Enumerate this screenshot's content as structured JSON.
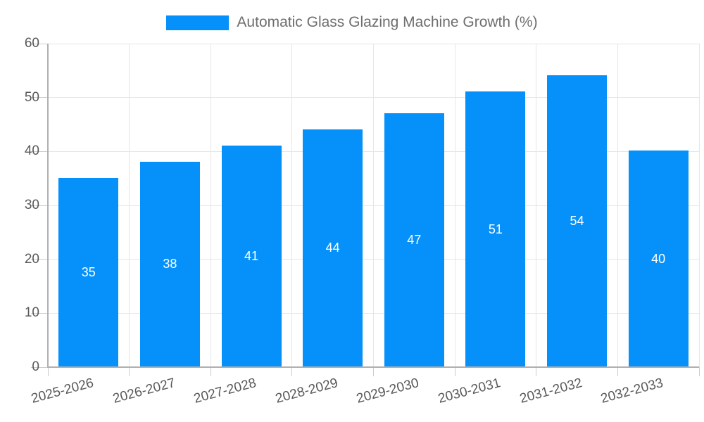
{
  "legend": {
    "label": "Automatic Glass Glazing Machine Growth (%)"
  },
  "chart_data": {
    "type": "bar",
    "title": "Automatic Glass Glazing Machine Growth (%)",
    "categories": [
      "2025-2026",
      "2026-2027",
      "2027-2028",
      "2028-2029",
      "2029-2030",
      "2030-2031",
      "2031-2032",
      "2032-2033"
    ],
    "values": [
      35,
      38,
      41,
      44,
      47,
      51,
      54,
      40
    ],
    "bar_labels": [
      "35",
      "38",
      "41",
      "44",
      "47",
      "51",
      "54",
      "40"
    ],
    "xlabel": "",
    "ylabel": "",
    "ylim": [
      0,
      60
    ],
    "yticks": [
      0,
      10,
      20,
      30,
      40,
      50,
      60
    ],
    "ytick_labels": [
      "0",
      "10",
      "20",
      "30",
      "40",
      "50",
      "60"
    ],
    "grid": true,
    "legend_position": "top",
    "colors": {
      "bar": "#0691fa",
      "bar_label": "#ffffff",
      "grid": "#e6e6e6",
      "tick": "#cccccc",
      "axis": "#b0b0b0",
      "axis_text": "#58595b",
      "legend_text": "#6e6e6e",
      "background": "#ffffff"
    }
  }
}
